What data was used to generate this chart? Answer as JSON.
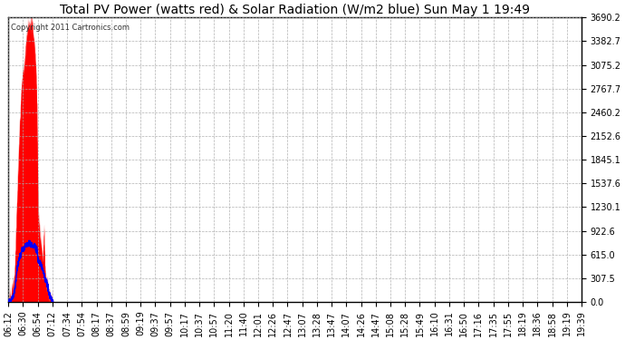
{
  "title": "Total PV Power (watts red) & Solar Radiation (W/m2 blue) Sun May 1 19:49",
  "copyright": "Copyright 2011 Cartronics.com",
  "yticks": [
    0.0,
    307.5,
    615.0,
    922.6,
    1230.1,
    1537.6,
    1845.1,
    2152.6,
    2460.2,
    2767.7,
    3075.2,
    3382.7,
    3690.2
  ],
  "ymax": 3690.2,
  "bg_color": "#ffffff",
  "plot_bg_color": "#ffffff",
  "grid_color": "#aaaaaa",
  "fill_color": "#ff0000",
  "line_color": "#0000ff",
  "title_fontsize": 10,
  "tick_label_fontsize": 7,
  "copyright_fontsize": 6,
  "time_labels": [
    "06:12",
    "06:30",
    "06:54",
    "07:12",
    "07:34",
    "07:54",
    "08:17",
    "08:37",
    "08:59",
    "09:19",
    "09:37",
    "09:57",
    "10:17",
    "10:37",
    "10:57",
    "11:20",
    "11:40",
    "12:01",
    "12:26",
    "12:47",
    "13:07",
    "13:28",
    "13:47",
    "14:07",
    "14:26",
    "14:47",
    "15:08",
    "15:28",
    "15:49",
    "16:10",
    "16:31",
    "16:50",
    "17:16",
    "17:35",
    "17:55",
    "18:19",
    "18:36",
    "18:58",
    "19:19",
    "19:39"
  ],
  "pv_base": [
    20,
    30,
    60,
    150,
    200,
    280,
    600,
    1100,
    1600,
    2000,
    2400,
    2700,
    2950,
    3100,
    3200,
    3380,
    3520,
    3600,
    3690,
    3660,
    3640,
    3600,
    3500,
    3350,
    3050,
    2500,
    1200,
    1000,
    850,
    720,
    620,
    920,
    400,
    300,
    220,
    150,
    90,
    50,
    20,
    10
  ],
  "solar_base": [
    5,
    10,
    20,
    50,
    70,
    100,
    180,
    330,
    460,
    530,
    580,
    620,
    660,
    690,
    710,
    730,
    740,
    745,
    750,
    755,
    748,
    740,
    730,
    715,
    695,
    670,
    540,
    510,
    485,
    455,
    415,
    370,
    290,
    255,
    195,
    145,
    95,
    55,
    25,
    8
  ],
  "pv_noise_seed": 42,
  "pv_noise_scale": 50,
  "solar_noise_seed": 55,
  "solar_noise_scale": 12,
  "dense_noise_pv_seed": 123,
  "dense_noise_pv_scale": 70,
  "dense_noise_sol_seed": 77,
  "dense_noise_sol_scale": 18,
  "n_dense": 500
}
